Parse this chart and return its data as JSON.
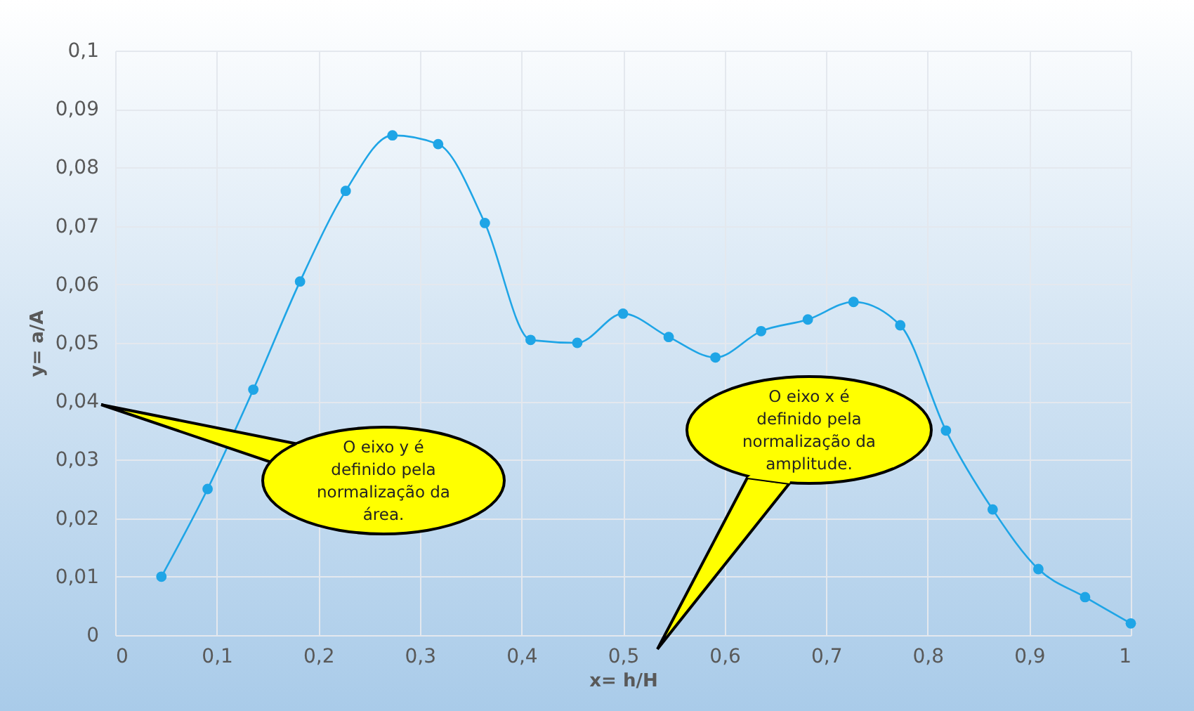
{
  "chart_data": {
    "type": "line",
    "xlabel": "x= h/H",
    "ylabel": "y= a/A",
    "x": [
      0.0455,
      0.091,
      0.136,
      0.182,
      0.227,
      0.273,
      0.318,
      0.364,
      0.409,
      0.455,
      0.5,
      0.545,
      0.591,
      0.636,
      0.682,
      0.727,
      0.773,
      0.818,
      0.864,
      0.909,
      0.955,
      1.0
    ],
    "series": [
      {
        "color": "#1fa5e6",
        "values": [
          0.01,
          0.025,
          0.042,
          0.0605,
          0.076,
          0.0855,
          0.084,
          0.0705,
          0.0505,
          0.05,
          0.055,
          0.051,
          0.0475,
          0.052,
          0.054,
          0.057,
          0.053,
          0.035,
          0.0215,
          0.0113,
          0.0065,
          0.002
        ]
      }
    ],
    "xlim": [
      0,
      1
    ],
    "ylim": [
      0,
      0.1
    ],
    "xticks": [
      0,
      {
        "value": 0.1,
        "label": "0,1"
      },
      {
        "value": 0.2,
        "label": "0,2"
      },
      {
        "value": 0.3,
        "label": "0,3"
      },
      {
        "value": 0.4,
        "label": "0,4"
      },
      {
        "value": 0.5,
        "label": "0,5"
      },
      {
        "value": 0.6,
        "label": "0,6"
      },
      {
        "value": 0.7,
        "label": "0,7"
      },
      {
        "value": 0.8,
        "label": "0,8"
      },
      {
        "value": 0.9,
        "label": "0,9"
      },
      1
    ],
    "yticks": [
      0,
      {
        "value": 0.01,
        "label": "0,01"
      },
      {
        "value": 0.02,
        "label": "0,02"
      },
      {
        "value": 0.03,
        "label": "0,03"
      },
      {
        "value": 0.04,
        "label": "0,04"
      },
      {
        "value": 0.05,
        "label": "0,05"
      },
      {
        "value": 0.06,
        "label": "0,06"
      },
      {
        "value": 0.07,
        "label": "0,07"
      },
      {
        "value": 0.08,
        "label": "0,08"
      },
      {
        "value": 0.09,
        "label": "0,09"
      },
      {
        "value": 0.1,
        "label": "0,1"
      }
    ],
    "grid": true,
    "marker": "circle",
    "line_style": "solid",
    "annotations": [
      "O eixo y é definido pela normalização da área.",
      "O eixo x é definido pela normalização da amplitude."
    ]
  }
}
